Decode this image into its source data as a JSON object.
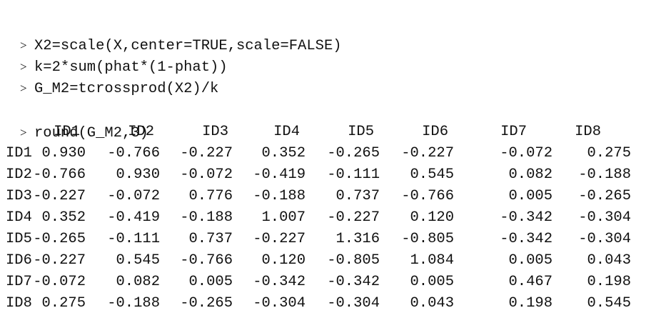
{
  "console": {
    "prompt": ">",
    "commands": [
      "X2=scale(X,center=TRUE,scale=FALSE)",
      "k=2*sum(phat*(1-phat))",
      "G_M2=tcrossprod(X2)/k"
    ],
    "round_command": "round(G_M2,3)"
  },
  "matrix": {
    "columns": [
      "ID1",
      "ID2",
      "ID3",
      "ID4",
      "ID5",
      "ID6",
      "ID7",
      "ID8"
    ],
    "rows": [
      {
        "label": "ID1",
        "values": [
          "0.930",
          "-0.766",
          "-0.227",
          "0.352",
          "-0.265",
          "-0.227",
          "-0.072",
          "0.275"
        ]
      },
      {
        "label": "ID2",
        "values": [
          "-0.766",
          "0.930",
          "-0.072",
          "-0.419",
          "-0.111",
          "0.545",
          "0.082",
          "-0.188"
        ]
      },
      {
        "label": "ID3",
        "values": [
          "-0.227",
          "-0.072",
          "0.776",
          "-0.188",
          "0.737",
          "-0.766",
          "0.005",
          "-0.265"
        ]
      },
      {
        "label": "ID4",
        "values": [
          "0.352",
          "-0.419",
          "-0.188",
          "1.007",
          "-0.227",
          "0.120",
          "-0.342",
          "-0.304"
        ]
      },
      {
        "label": "ID5",
        "values": [
          "-0.265",
          "-0.111",
          "0.737",
          "-0.227",
          "1.316",
          "-0.805",
          "-0.342",
          "-0.304"
        ]
      },
      {
        "label": "ID6",
        "values": [
          "-0.227",
          "0.545",
          "-0.766",
          "0.120",
          "-0.805",
          "1.084",
          "0.005",
          "0.043"
        ]
      },
      {
        "label": "ID7",
        "values": [
          "-0.072",
          "0.082",
          "0.005",
          "-0.342",
          "-0.342",
          "0.005",
          "0.467",
          "0.198"
        ]
      },
      {
        "label": "ID8",
        "values": [
          "0.275",
          "-0.188",
          "-0.265",
          "-0.304",
          "-0.304",
          "0.043",
          "0.198",
          "0.545"
        ]
      }
    ]
  }
}
